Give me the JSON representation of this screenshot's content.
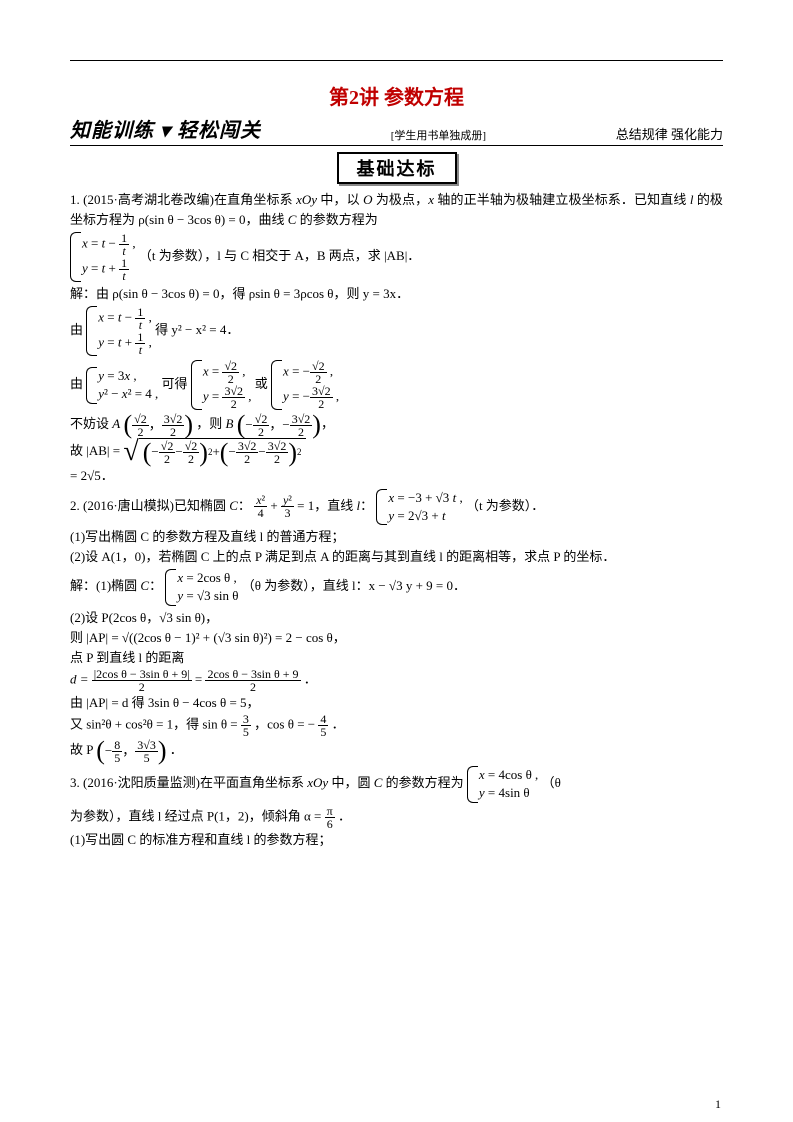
{
  "colors": {
    "title": "#c00000",
    "text": "#000000",
    "bg": "#ffffff",
    "shadow": "#888888"
  },
  "fonts": {
    "title_size": 20,
    "body_size": 13,
    "section_size": 18
  },
  "header": {
    "title": "第2讲 参数方程",
    "left": "知能训练 ▾ 轻松闯关",
    "center": "[学生用书单独成册]",
    "right": "总结规律 强化能力",
    "section": "基础达标"
  },
  "q1": {
    "lead": "1. (2015·高考湖北卷改编)在直角坐标系 ",
    "xoy": "xOy",
    "lead2": " 中，以 ",
    "O": "O",
    "lead3": " 为极点，",
    "x": "x",
    "lead4": " 轴的正半轴为极轴建立极坐标系．已知直线 ",
    "l": "l",
    "lead5": " 的极坐标方程为 ρ(sin θ − 3cos θ) = 0，曲线 ",
    "C": "C",
    "lead6": " 的参数方程为",
    "sys1_r1": "x = t − 1/t ,",
    "sys1_r2": "y = t + 1/t",
    "sys1_tail": "（t 为参数），l 与 C 相交于 A，B 两点，求 |AB|．",
    "sol1": "解：由 ρ(sin θ − 3cos θ) = 0，得 ρsin θ = 3ρcos θ，则 y = 3x．",
    "by_label": "由",
    "sys2_r1": "x = t − 1/t ,",
    "sys2_r2": "y = t + 1/t ,",
    "sys2_tail": "得 y² − x² = 4．",
    "sys3_r1": "y = 3x ,",
    "sys3_r2": "y² − x² = 4 ,",
    "mid_text": "可得",
    "sysA_r1_x": "x = √2/2 ,",
    "sysA_r2_y": "y = 3√2/2 ,",
    "or": "或",
    "sysB_r1_x": "x = −√2/2 ,",
    "sysB_r2_y": "y = −3√2/2 ,",
    "buFangShe": "不妨设 ",
    "A_label": "A",
    "A_coords_a": "√2/2",
    "A_coords_b": "3√2/2",
    "zeB": "，则 ",
    "B_label": "B",
    "B_coords_a": "−√2/2",
    "B_coords_b": "−3√2/2",
    "period": "，",
    "gu": "故 |AB| = ",
    "inside1_a": "−√2/2 − √2/2",
    "inside2_a": "−3√2/2 − 3√2/2",
    "eq_final": "= 2√5．"
  },
  "q2": {
    "lead": "2. (2016·唐山模拟)已知椭圆 ",
    "C": "C",
    "colon": "：",
    "ellipse_a": "x²/4",
    "ellipse_b": "y²/3",
    "eq1": " = 1，直线 ",
    "l": "l",
    "colon2": "：",
    "sys_r1": "x = −3 + √3 t ,",
    "sys_r2": "y = 2√3 + t",
    "tail": "（t 为参数）．",
    "p1": "(1)写出椭圆 C 的参数方程及直线 l 的普通方程；",
    "p2": "(2)设 A(1，0)，若椭圆 C 上的点 P 满足到点 A 的距离与其到直线 l 的距离相等，求点 P 的坐标．",
    "sol_label": "解：(1)椭圆 ",
    "sysC_r1": "x = 2cos θ ,",
    "sysC_r2": "y = √3 sin θ",
    "sysC_tail": "（θ 为参数），直线 l：x − √3 y + 9 = 0．",
    "s2": "(2)设 P(2cos θ，√3 sin θ)，",
    "ze": "则 |AP| = √((2cos θ − 1)² + (√3 sin θ)²) = 2 − cos θ，",
    "dline": "点 P 到直线 l 的距离",
    "d_eq_num1": "|2cos θ − 3sin θ + 9|",
    "d_eq_den": "2",
    "d_eq_num2": "2cos θ − 3sin θ + 9",
    "d_label": "d = ",
    "d_period": "．",
    "by": "由 |AP| = d 得 3sin θ − 4cos θ = 5，",
    "you": "又 sin²θ + cos²θ = 1，得 sin θ = ",
    "sin_num": "3",
    "sin_den": "5",
    "cos_lead": "，cos θ = −",
    "cos_num": "4",
    "cos_den": "5",
    "you_end": "．",
    "guP": "故 P",
    "P_a": "−8/5",
    "P_b": "3√3/5",
    "guP_end": "．"
  },
  "q3": {
    "lead": "3. (2016·沈阳质量监测)在平面直角坐标系 ",
    "xoy": "xOy",
    "lead2": " 中，圆 ",
    "C": "C",
    "lead3": " 的参数方程为",
    "sys_r1": "x = 4cos θ ,",
    "sys_r2": "y = 4sin θ",
    "tail1": "（θ",
    "tail2": "为参数），直线 l 经过点 P(1，2)，倾斜角 α = ",
    "alpha_num": "π",
    "alpha_den": "6",
    "tail3": "．",
    "p1": "(1)写出圆 C 的标准方程和直线 l 的参数方程；"
  },
  "pagenum": "1"
}
